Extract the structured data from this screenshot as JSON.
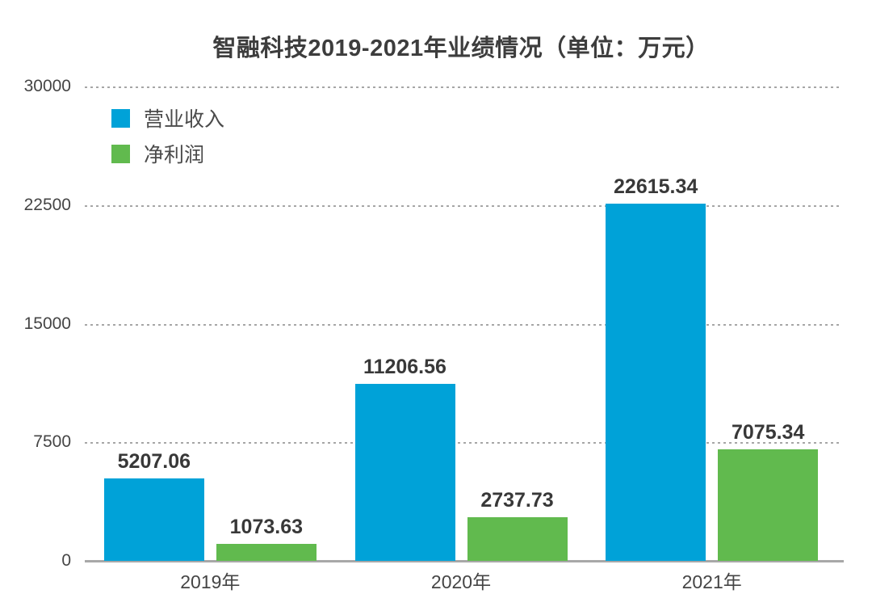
{
  "chart_data": {
    "type": "bar",
    "title": "智融科技2019-2021年业绩情况（单位：万元）",
    "categories": [
      "2019年",
      "2020年",
      "2021年"
    ],
    "series": [
      {
        "name": "营业收入",
        "color": "#00a2d8",
        "values": [
          5207.06,
          11206.56,
          22615.34
        ]
      },
      {
        "name": "净利润",
        "color": "#61ba4e",
        "values": [
          1073.63,
          2737.73,
          7075.34
        ]
      }
    ],
    "ylim": [
      0,
      30000
    ],
    "yticks": [
      "30000",
      "22500",
      "15000",
      "7500",
      "0"
    ],
    "grid": "horizontal dashed gridlines at ticks",
    "legend_position": "top-left inside plot",
    "value_labels": "above each bar"
  }
}
